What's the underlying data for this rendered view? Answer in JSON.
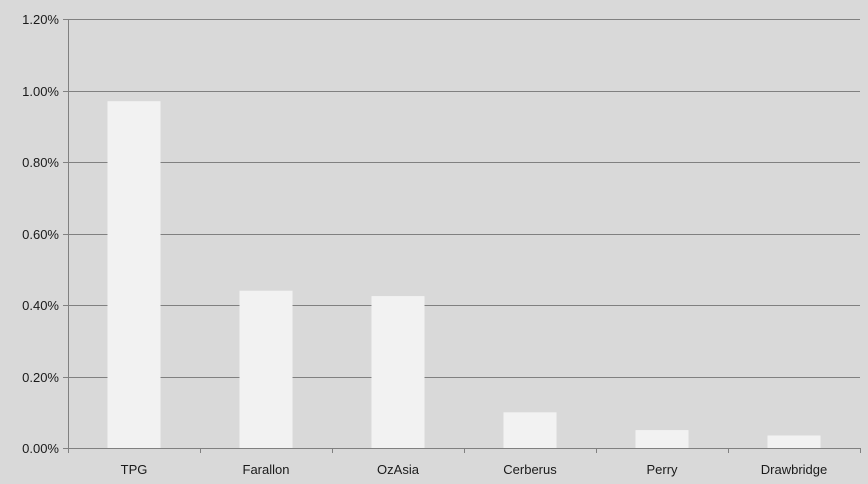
{
  "chart_data": {
    "type": "bar",
    "categories": [
      "TPG",
      "Farallon",
      "OzAsia",
      "Cerberus",
      "Perry",
      "Drawbridge"
    ],
    "values": [
      0.97,
      0.44,
      0.425,
      0.1,
      0.05,
      0.035
    ],
    "value_unit": "percent",
    "title": "",
    "xlabel": "",
    "ylabel": "",
    "ylim": [
      0,
      1.2
    ],
    "yticks": [
      0,
      0.2,
      0.4,
      0.6,
      0.8,
      1.0,
      1.2
    ],
    "ytick_labels": [
      "0.00%",
      "0.20%",
      "0.40%",
      "0.60%",
      "0.80%",
      "1.00%",
      "1.20%"
    ],
    "grid": true,
    "legend": "none",
    "colors": {
      "background": "#d9d9d9",
      "bar": "#f2f2f2",
      "gridline": "#808080",
      "axis": "#808080",
      "text": "#1a1a1a"
    }
  }
}
